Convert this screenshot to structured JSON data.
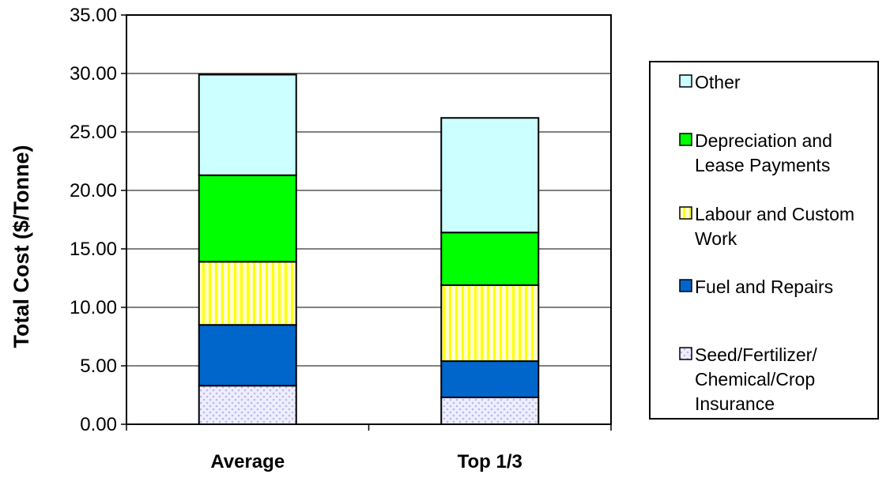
{
  "chart_data": {
    "type": "bar",
    "stacked": true,
    "title": "",
    "xlabel": "",
    "ylabel": "Total Cost ($/Tonne)",
    "ylim": [
      0,
      35
    ],
    "ytick_step": 5,
    "ytick_labels": [
      "0.00",
      "5.00",
      "10.00",
      "15.00",
      "20.00",
      "25.00",
      "30.00",
      "35.00"
    ],
    "grid": true,
    "legend_position": "right",
    "categories": [
      "Average",
      "Top 1/3"
    ],
    "series": [
      {
        "name": "Seed/Fertilizer/ Chemical/Crop Insurance",
        "lines": [
          "Seed/Fertilizer/",
          "Chemical/Crop",
          "Insurance"
        ],
        "values": [
          3.3,
          2.3
        ],
        "color": "#e4e4ff",
        "pattern": "dots"
      },
      {
        "name": "Fuel and Repairs",
        "lines": [
          "Fuel and Repairs"
        ],
        "values": [
          5.2,
          3.1
        ],
        "color": "#0066cc",
        "pattern": "solid"
      },
      {
        "name": "Labour and Custom Work",
        "lines": [
          "Labour and Custom",
          "Work"
        ],
        "values": [
          5.4,
          6.5
        ],
        "color": "#ffff99",
        "pattern": "vertical-stripes"
      },
      {
        "name": "Depreciation and Lease Payments",
        "lines": [
          "Depreciation and",
          "Lease Payments"
        ],
        "values": [
          7.4,
          4.5
        ],
        "color": "#00ff00",
        "pattern": "solid"
      },
      {
        "name": "Other",
        "lines": [
          "Other"
        ],
        "values": [
          8.6,
          9.8
        ],
        "color": "#ccffff",
        "pattern": "solid"
      }
    ]
  }
}
